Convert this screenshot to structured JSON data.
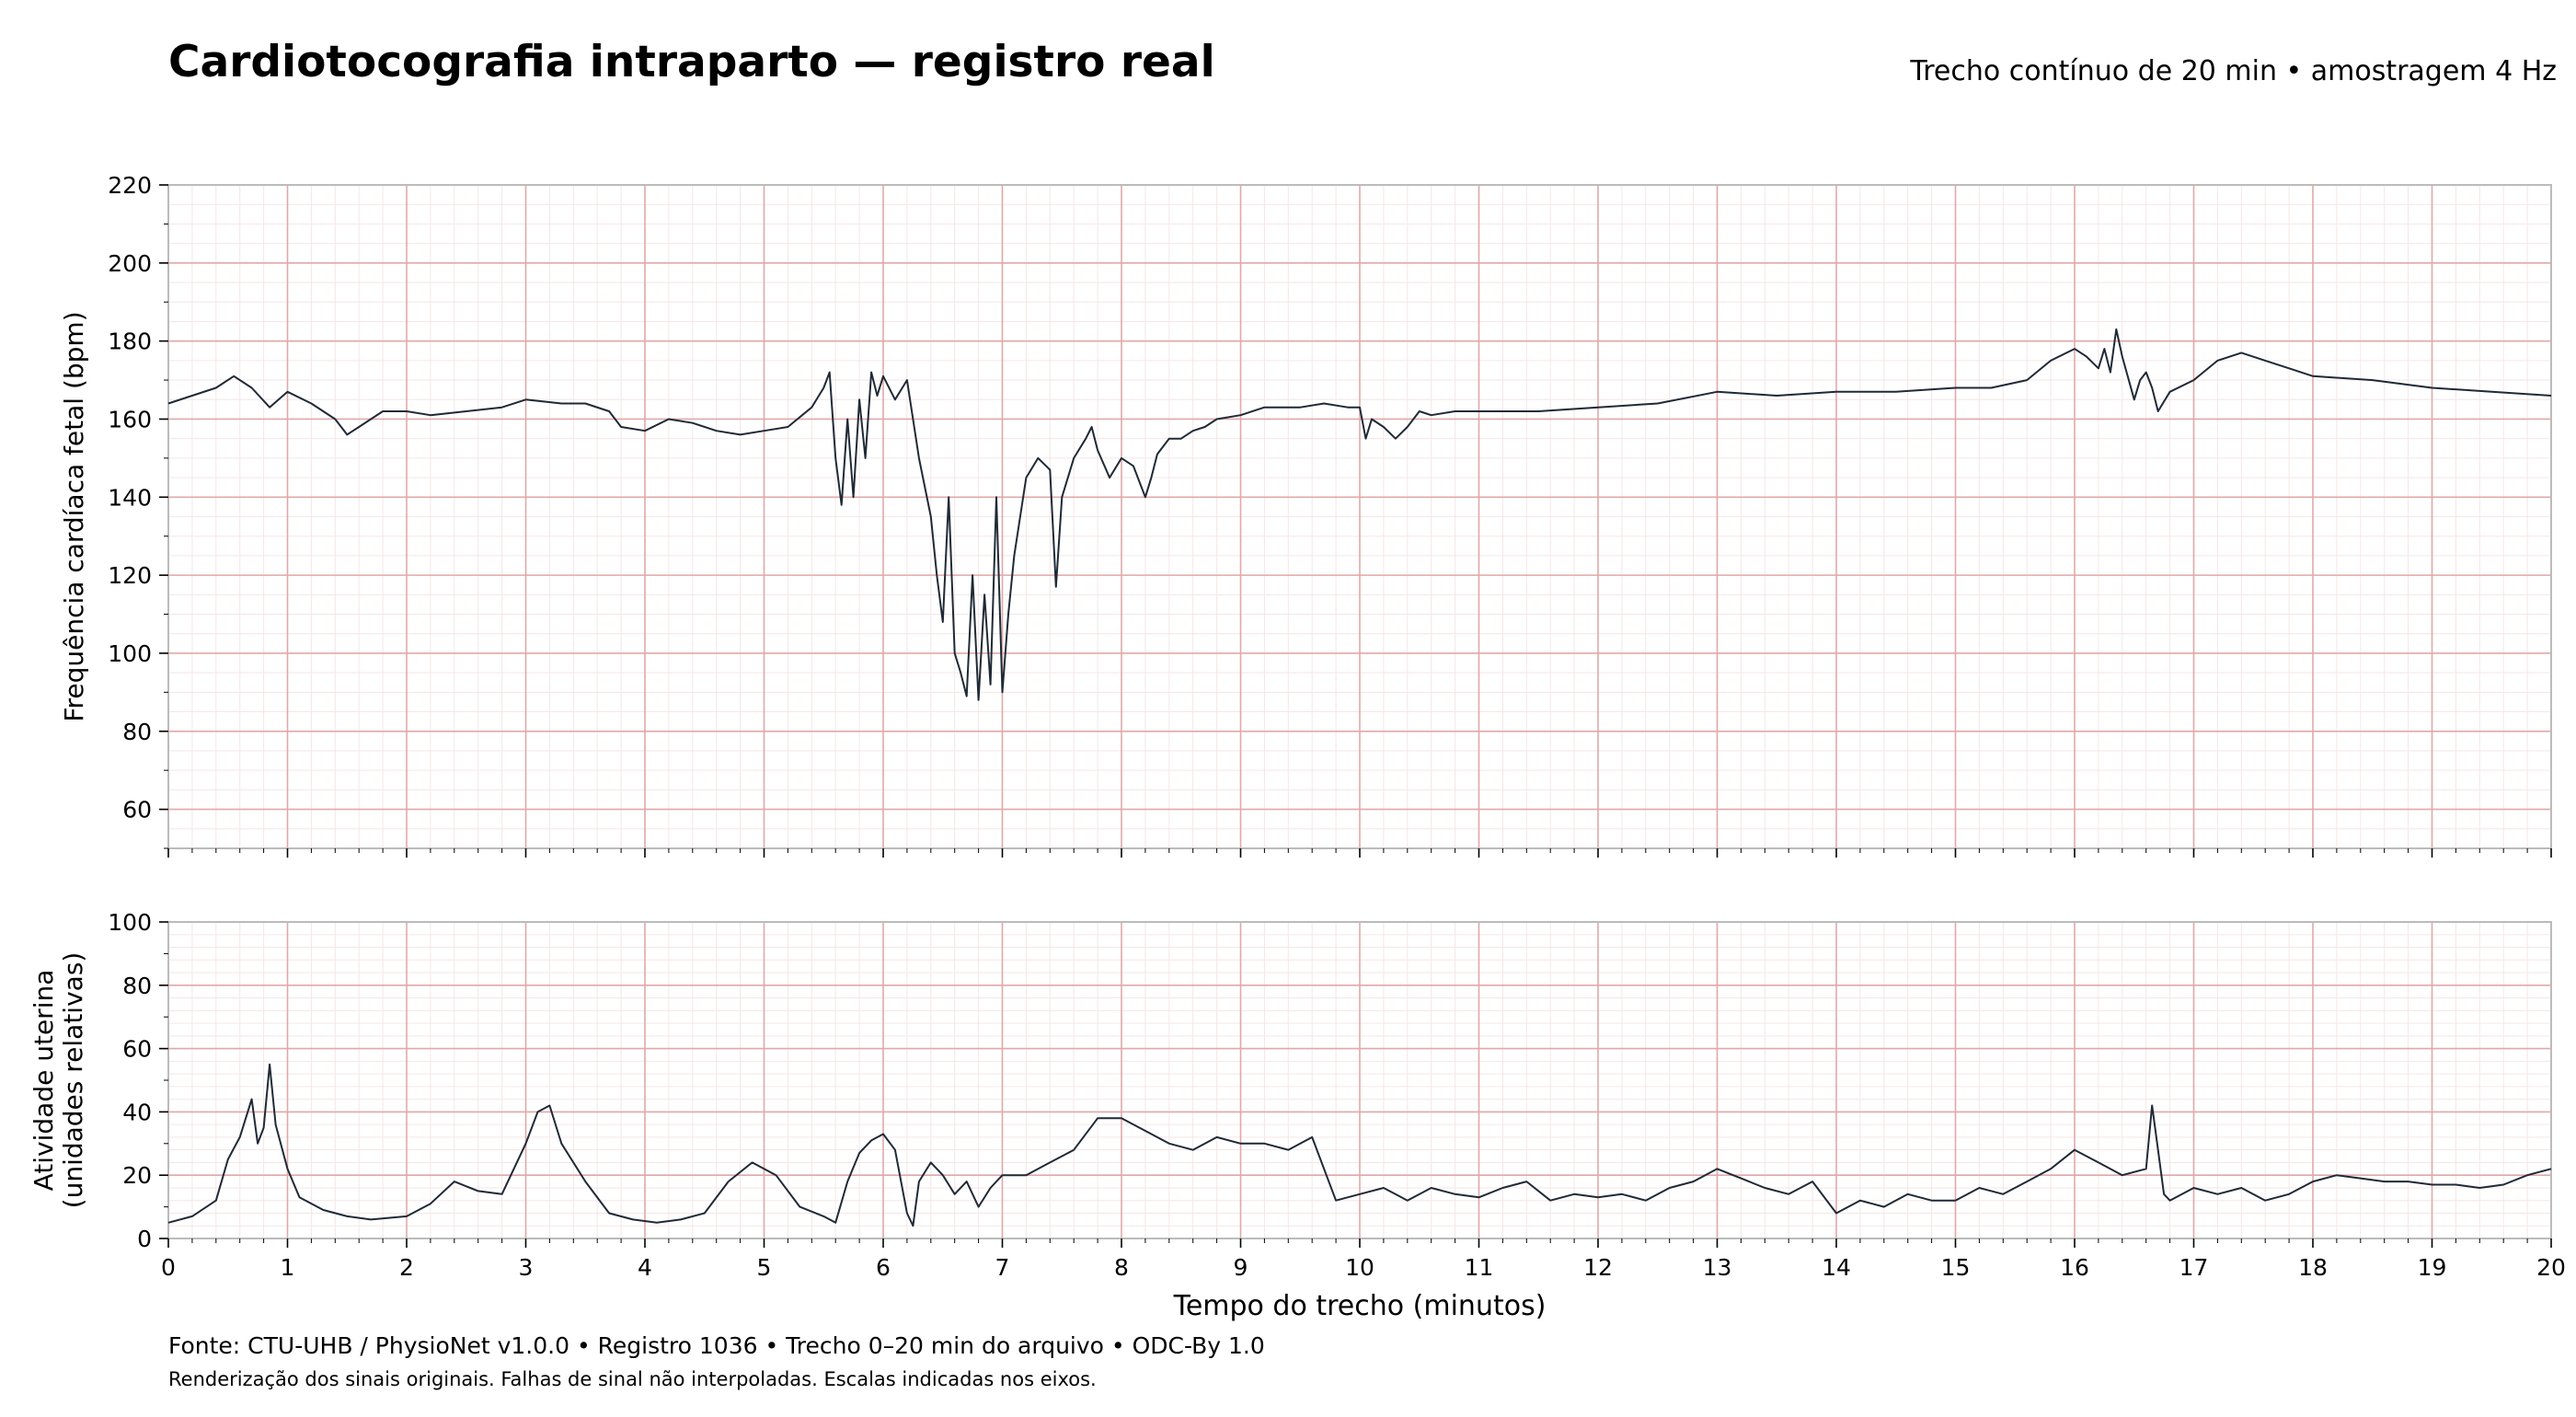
{
  "title": "Cardiotocografia intraparto — registro real",
  "subtitle": "Trecho contínuo de 20 min • amostragem 4 Hz",
  "footer": {
    "source": "Fonte: CTU-UHB / PhysioNet v1.0.0 • Registro 1036 • Trecho 0–20 min do arquivo • ODC-By 1.0",
    "note": "Renderização dos sinais originais. Falhas de sinal não interpoladas. Escalas indicadas nos eixos."
  },
  "colors": {
    "trace": "#1f2a36",
    "major_grid": "#e0a8a8",
    "minor_grid": "#f5e6e6",
    "frame": "#bbbbbb"
  },
  "chart_data": [
    {
      "type": "line",
      "name": "fhr",
      "ylabel": "Frequência cardíaca fetal (bpm)",
      "xlim": [
        0,
        20
      ],
      "ylim": [
        50,
        220
      ],
      "yticks": [
        60,
        80,
        100,
        120,
        140,
        160,
        180,
        200,
        220
      ],
      "xticks": [
        0,
        1,
        2,
        3,
        4,
        5,
        6,
        7,
        8,
        9,
        10,
        11,
        12,
        13,
        14,
        15,
        16,
        17,
        18,
        19,
        20
      ],
      "grid": true,
      "x": [
        0,
        0.2,
        0.4,
        0.55,
        0.7,
        0.85,
        1.0,
        1.2,
        1.4,
        1.5,
        1.6,
        1.8,
        2.0,
        2.2,
        2.5,
        2.8,
        3.0,
        3.3,
        3.5,
        3.7,
        3.8,
        4.0,
        4.2,
        4.4,
        4.6,
        4.8,
        5.0,
        5.2,
        5.4,
        5.5,
        5.55,
        5.6,
        5.65,
        5.7,
        5.75,
        5.8,
        5.85,
        5.9,
        5.95,
        6.0,
        6.1,
        6.2,
        6.25,
        6.3,
        6.4,
        6.45,
        6.5,
        6.55,
        6.6,
        6.65,
        6.7,
        6.75,
        6.8,
        6.85,
        6.9,
        6.95,
        7.0,
        7.05,
        7.1,
        7.2,
        7.3,
        7.4,
        7.45,
        7.5,
        7.6,
        7.7,
        7.75,
        7.8,
        7.9,
        8.0,
        8.1,
        8.2,
        8.25,
        8.3,
        8.4,
        8.5,
        8.6,
        8.7,
        8.8,
        9.0,
        9.2,
        9.5,
        9.7,
        9.9,
        10.0,
        10.05,
        10.1,
        10.2,
        10.3,
        10.4,
        10.5,
        10.6,
        10.8,
        11.0,
        11.5,
        12.0,
        12.5,
        13.0,
        13.5,
        14.0,
        14.5,
        15.0,
        15.3,
        15.6,
        15.8,
        16.0,
        16.1,
        16.2,
        16.25,
        16.3,
        16.35,
        16.4,
        16.5,
        16.55,
        16.6,
        16.65,
        16.7,
        16.8,
        17.0,
        17.2,
        17.4,
        17.6,
        17.8,
        18.0,
        18.5,
        19.0,
        19.5,
        20.0
      ],
      "y": [
        164,
        166,
        168,
        171,
        168,
        163,
        167,
        164,
        160,
        156,
        158,
        162,
        162,
        161,
        162,
        163,
        165,
        164,
        164,
        162,
        158,
        157,
        160,
        159,
        157,
        156,
        157,
        158,
        163,
        168,
        172,
        150,
        138,
        160,
        140,
        165,
        150,
        172,
        166,
        171,
        165,
        170,
        160,
        150,
        135,
        120,
        108,
        140,
        100,
        95,
        89,
        120,
        88,
        115,
        92,
        140,
        90,
        110,
        125,
        145,
        150,
        147,
        117,
        140,
        150,
        155,
        158,
        152,
        145,
        150,
        148,
        140,
        145,
        151,
        155,
        155,
        157,
        158,
        160,
        161,
        163,
        163,
        164,
        163,
        163,
        155,
        160,
        158,
        155,
        158,
        162,
        161,
        162,
        162,
        162,
        163,
        164,
        167,
        166,
        167,
        167,
        168,
        168,
        170,
        175,
        178,
        176,
        173,
        178,
        172,
        183,
        176,
        165,
        170,
        172,
        168,
        162,
        167,
        170,
        175,
        177,
        175,
        173,
        171,
        170,
        168,
        167,
        166
      ]
    },
    {
      "type": "line",
      "name": "toco",
      "ylabel": "Atividade uterina\n(unidades relativas)",
      "xlabel": "Tempo do trecho (minutos)",
      "xlim": [
        0,
        20
      ],
      "ylim": [
        0,
        100
      ],
      "yticks": [
        0,
        20,
        40,
        60,
        80,
        100
      ],
      "xticks": [
        0,
        1,
        2,
        3,
        4,
        5,
        6,
        7,
        8,
        9,
        10,
        11,
        12,
        13,
        14,
        15,
        16,
        17,
        18,
        19,
        20
      ],
      "grid": true,
      "x": [
        0,
        0.2,
        0.4,
        0.5,
        0.6,
        0.7,
        0.75,
        0.8,
        0.85,
        0.9,
        1.0,
        1.1,
        1.3,
        1.5,
        1.7,
        2.0,
        2.2,
        2.4,
        2.6,
        2.8,
        3.0,
        3.1,
        3.2,
        3.3,
        3.5,
        3.7,
        3.9,
        4.1,
        4.3,
        4.5,
        4.7,
        4.9,
        5.1,
        5.3,
        5.5,
        5.6,
        5.7,
        5.8,
        5.9,
        6.0,
        6.1,
        6.2,
        6.25,
        6.3,
        6.4,
        6.5,
        6.6,
        6.7,
        6.8,
        6.9,
        7.0,
        7.2,
        7.4,
        7.6,
        7.8,
        8.0,
        8.2,
        8.4,
        8.6,
        8.8,
        9.0,
        9.2,
        9.4,
        9.6,
        9.8,
        10.0,
        10.2,
        10.4,
        10.6,
        10.8,
        11.0,
        11.2,
        11.4,
        11.6,
        11.8,
        12.0,
        12.2,
        12.4,
        12.6,
        12.8,
        13.0,
        13.2,
        13.4,
        13.6,
        13.8,
        14.0,
        14.2,
        14.4,
        14.6,
        14.8,
        15.0,
        15.2,
        15.4,
        15.6,
        15.8,
        16.0,
        16.2,
        16.4,
        16.6,
        16.65,
        16.7,
        16.75,
        16.8,
        17.0,
        17.2,
        17.4,
        17.6,
        17.8,
        18.0,
        18.2,
        18.4,
        18.6,
        18.8,
        19.0,
        19.2,
        19.4,
        19.6,
        19.8,
        20.0
      ],
      "y": [
        5,
        7,
        12,
        25,
        32,
        44,
        30,
        35,
        55,
        36,
        22,
        13,
        9,
        7,
        6,
        7,
        11,
        18,
        15,
        14,
        30,
        40,
        42,
        30,
        18,
        8,
        6,
        5,
        6,
        8,
        18,
        24,
        20,
        10,
        7,
        5,
        18,
        27,
        31,
        33,
        28,
        8,
        4,
        18,
        24,
        20,
        14,
        18,
        10,
        16,
        20,
        20,
        24,
        28,
        38,
        38,
        34,
        30,
        28,
        32,
        30,
        30,
        28,
        32,
        12,
        14,
        16,
        12,
        16,
        14,
        13,
        16,
        18,
        12,
        14,
        13,
        14,
        12,
        16,
        18,
        22,
        19,
        16,
        14,
        18,
        8,
        12,
        10,
        14,
        12,
        12,
        16,
        14,
        18,
        22,
        28,
        24,
        20,
        22,
        42,
        28,
        14,
        12,
        16,
        14,
        16,
        12,
        14,
        18,
        20,
        19,
        18,
        18,
        17,
        17,
        16,
        17,
        20,
        22
      ]
    }
  ]
}
